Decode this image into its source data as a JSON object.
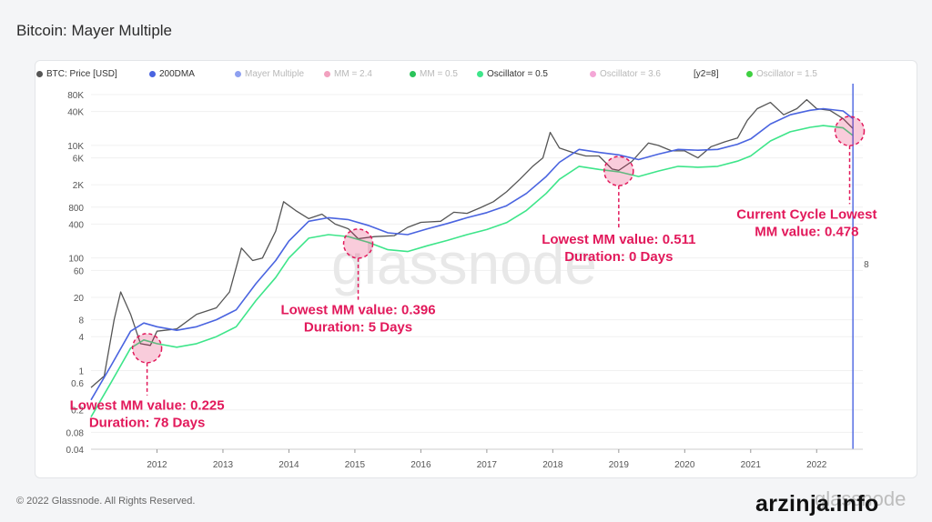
{
  "title": "Bitcoin: Mayer Multiple",
  "footer": {
    "copyright": "© 2022 Glassnode. All Rights Reserved.",
    "logo_text": "glassnode",
    "site_mark": "arzinja.info"
  },
  "watermark": "glassnode",
  "legend": [
    {
      "label": "BTC: Price [USD]",
      "color": "#555555",
      "dim": false
    },
    {
      "label": "200DMA",
      "color": "#4a64e0",
      "dim": false
    },
    {
      "label": "Mayer Multiple",
      "color": "#8ea0f0",
      "dim": true
    },
    {
      "label": "MM = 2.4",
      "color": "#f2a1bf",
      "dim": true
    },
    {
      "label": "MM = 0.5",
      "color": "#2ac35a",
      "dim": true
    },
    {
      "label": "Oscillator = 0.5",
      "color": "#3ee58a",
      "dim": false
    },
    {
      "label": "Oscillator = 3.6",
      "color": "#f4a6d6",
      "dim": true
    },
    {
      "label": "[y2=8]",
      "color": "",
      "dim": false
    },
    {
      "label": "Oscillator = 1.5",
      "color": "#3fd041",
      "dim": true
    }
  ],
  "chart_data": {
    "type": "line",
    "y_scale": "log",
    "ylim": [
      0.04,
      80000
    ],
    "y_ticks": [
      "80K",
      "40K",
      "10K",
      "6K",
      "2K",
      "800",
      "400",
      "100",
      "60",
      "20",
      "8",
      "4",
      "1",
      "0.6",
      "0.2",
      "0.08",
      "0.04"
    ],
    "y_tick_values": [
      80000,
      40000,
      10000,
      6000,
      2000,
      800,
      400,
      100,
      60,
      20,
      8,
      4,
      1,
      0.6,
      0.2,
      0.08,
      0.04
    ],
    "x_ticks": [
      "2012",
      "2013",
      "2014",
      "2015",
      "2016",
      "2017",
      "2018",
      "2019",
      "2020",
      "2021",
      "2022"
    ],
    "xlim": [
      2011.0,
      2022.7
    ],
    "y2_label": "8",
    "series": [
      {
        "name": "BTC: Price [USD]",
        "color": "#555555",
        "x": [
          2011.0,
          2011.2,
          2011.35,
          2011.45,
          2011.6,
          2011.75,
          2011.9,
          2012.0,
          2012.3,
          2012.6,
          2012.9,
          2013.1,
          2013.28,
          2013.45,
          2013.6,
          2013.8,
          2013.92,
          2014.1,
          2014.3,
          2014.5,
          2014.7,
          2014.9,
          2015.05,
          2015.3,
          2015.6,
          2015.8,
          2016.0,
          2016.3,
          2016.5,
          2016.7,
          2016.9,
          2017.1,
          2017.3,
          2017.5,
          2017.7,
          2017.85,
          2017.96,
          2018.1,
          2018.3,
          2018.5,
          2018.7,
          2018.9,
          2019.0,
          2019.2,
          2019.45,
          2019.6,
          2019.8,
          2020.0,
          2020.2,
          2020.4,
          2020.6,
          2020.8,
          2020.95,
          2021.1,
          2021.3,
          2021.5,
          2021.7,
          2021.85,
          2022.0,
          2022.2,
          2022.4,
          2022.55
        ],
        "values": [
          0.5,
          0.8,
          8,
          25,
          10,
          3,
          2.8,
          5,
          5.5,
          10,
          13,
          25,
          150,
          90,
          100,
          300,
          1000,
          700,
          500,
          600,
          400,
          330,
          220,
          240,
          250,
          350,
          430,
          450,
          650,
          620,
          780,
          1000,
          1500,
          2500,
          4300,
          6000,
          17000,
          9000,
          7500,
          6500,
          6500,
          3800,
          3600,
          5200,
          11000,
          10000,
          8000,
          8000,
          6000,
          9500,
          11500,
          13500,
          28000,
          45000,
          58000,
          35000,
          45000,
          65000,
          45000,
          42000,
          30000,
          20000
        ]
      },
      {
        "name": "200DMA",
        "color": "#4a64e0",
        "x": [
          2011.0,
          2011.3,
          2011.6,
          2011.8,
          2012.0,
          2012.3,
          2012.6,
          2012.9,
          2013.2,
          2013.5,
          2013.8,
          2014.0,
          2014.3,
          2014.6,
          2014.9,
          2015.2,
          2015.5,
          2015.8,
          2016.1,
          2016.4,
          2016.7,
          2017.0,
          2017.3,
          2017.6,
          2017.9,
          2018.1,
          2018.4,
          2018.7,
          2019.0,
          2019.3,
          2019.6,
          2019.9,
          2020.2,
          2020.5,
          2020.8,
          2021.0,
          2021.3,
          2021.6,
          2021.9,
          2022.1,
          2022.4,
          2022.55
        ],
        "values": [
          0.3,
          1.2,
          5,
          7,
          6,
          5.2,
          6,
          8,
          12,
          35,
          90,
          200,
          450,
          520,
          480,
          380,
          280,
          260,
          330,
          410,
          520,
          640,
          850,
          1400,
          2800,
          5000,
          8500,
          7500,
          6800,
          5600,
          7000,
          8500,
          8200,
          8500,
          10500,
          13000,
          24000,
          35000,
          42000,
          45000,
          41000,
          30000
        ]
      },
      {
        "name": "Oscillator = 0.5",
        "color": "#3ee58a",
        "x": [
          2011.0,
          2011.3,
          2011.6,
          2011.8,
          2012.0,
          2012.3,
          2012.6,
          2012.9,
          2013.2,
          2013.5,
          2013.8,
          2014.0,
          2014.3,
          2014.6,
          2014.9,
          2015.2,
          2015.5,
          2015.8,
          2016.1,
          2016.4,
          2016.7,
          2017.0,
          2017.3,
          2017.6,
          2017.9,
          2018.1,
          2018.4,
          2018.7,
          2019.0,
          2019.3,
          2019.6,
          2019.9,
          2020.2,
          2020.5,
          2020.8,
          2021.0,
          2021.3,
          2021.6,
          2021.9,
          2022.1,
          2022.4,
          2022.55
        ],
        "values": [
          0.15,
          0.6,
          2.5,
          3.5,
          3,
          2.6,
          3,
          4,
          6,
          17.5,
          45,
          100,
          225,
          260,
          240,
          190,
          140,
          130,
          165,
          205,
          260,
          320,
          425,
          700,
          1400,
          2500,
          4250,
          3750,
          3400,
          2800,
          3500,
          4250,
          4100,
          4250,
          5250,
          6500,
          12000,
          17500,
          21000,
          22500,
          20500,
          15000
        ]
      }
    ],
    "annotations": [
      {
        "text": [
          "Lowest MM value: 0.225",
          "Duration: 78 Days"
        ],
        "x": 2011.85,
        "y": 2.5,
        "label_x": 2011.85,
        "label_y": 0.2
      },
      {
        "text": [
          "Lowest MM value: 0.396",
          "Duration: 5 Days"
        ],
        "x": 2015.05,
        "y": 180,
        "label_x": 2015.05,
        "label_y": 10
      },
      {
        "text": [
          "Lowest MM value: 0.511",
          "Duration: 0 Days"
        ],
        "x": 2019.0,
        "y": 3500,
        "label_x": 2019.0,
        "label_y": 180
      },
      {
        "text": [
          "Current Cycle Lowest",
          "MM value: 0.478"
        ],
        "x": 2022.5,
        "y": 18000,
        "label_x": 2021.85,
        "label_y": 500
      }
    ],
    "marker_line_x": 2022.55,
    "annotation_color": "#e2195b"
  }
}
